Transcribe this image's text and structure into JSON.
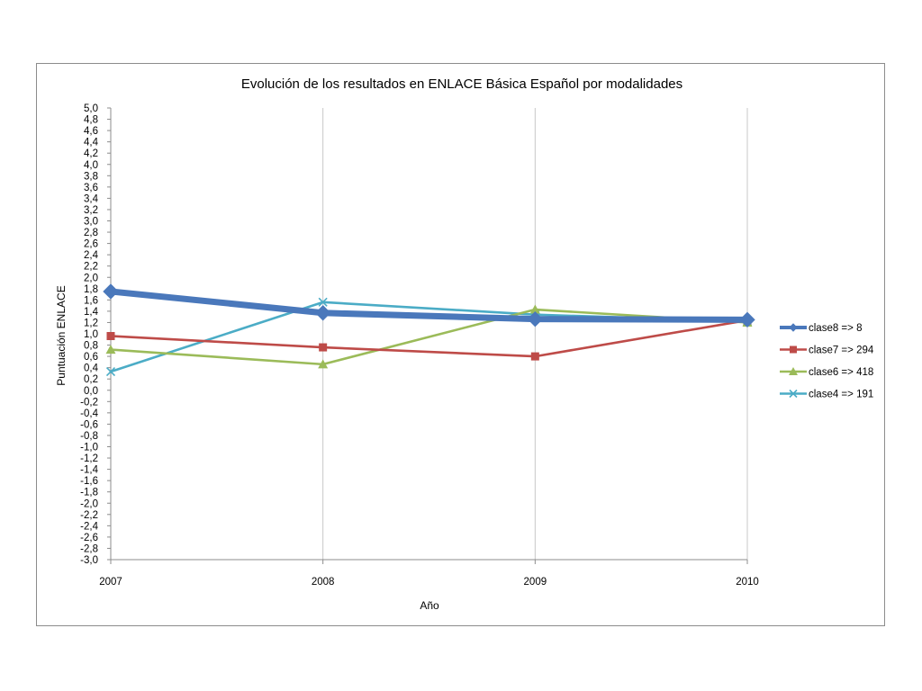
{
  "chart_data": {
    "type": "line",
    "title": "Evolución de los resultados en ENLACE Básica Español por modalidades",
    "xlabel": "Año",
    "ylabel": "Puntuación ENLACE",
    "categories": [
      "2007",
      "2008",
      "2009",
      "2010"
    ],
    "ylim": [
      -3.0,
      5.0
    ],
    "ystep": 0.2,
    "grid": "vertical",
    "legend_position": "right",
    "series": [
      {
        "name": "clase8 => 8",
        "values": [
          1.75,
          1.37,
          1.26,
          1.25
        ],
        "color": "#4a78bb",
        "marker": "diamond",
        "weight": "heavy"
      },
      {
        "name": "clase7 => 294",
        "values": [
          0.96,
          0.76,
          0.6,
          1.24
        ],
        "color": "#be4b48",
        "marker": "square",
        "weight": "normal"
      },
      {
        "name": "clase6 => 418",
        "values": [
          0.72,
          0.46,
          1.43,
          1.2
        ],
        "color": "#9bbb59",
        "marker": "triangle",
        "weight": "normal"
      },
      {
        "name": "clase4 => 191",
        "values": [
          0.33,
          1.56,
          1.34,
          1.22
        ],
        "color": "#4bacc6",
        "marker": "x",
        "weight": "normal"
      }
    ]
  }
}
